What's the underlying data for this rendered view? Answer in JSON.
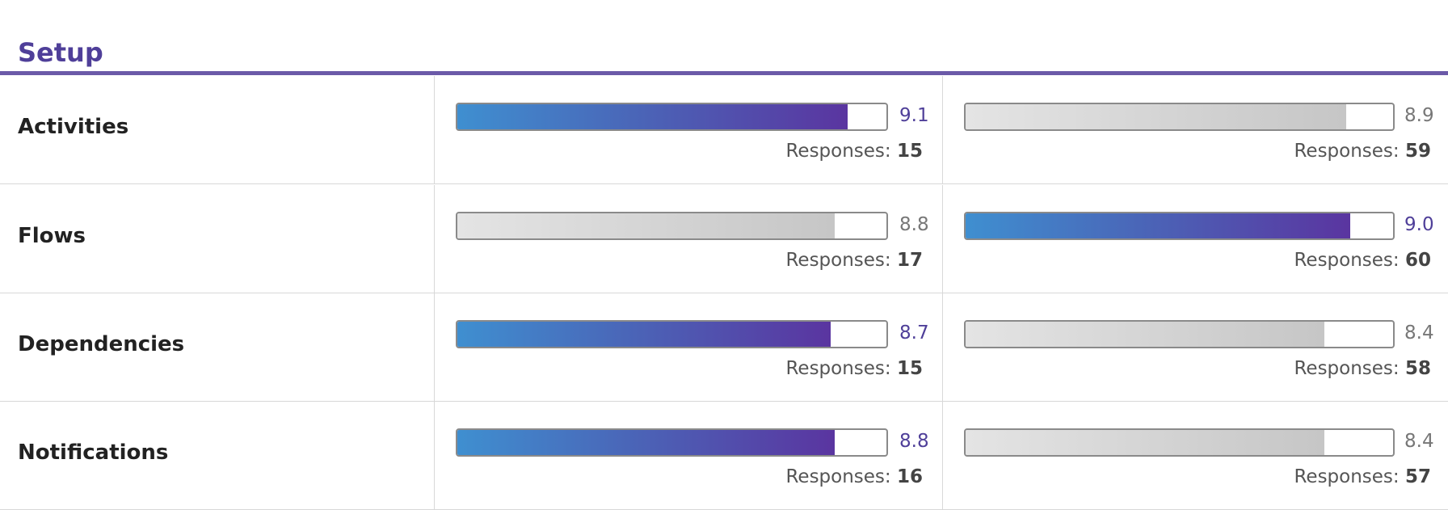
{
  "header": {
    "title": "Setup"
  },
  "responses_label": "Responses:",
  "xlim": [
    0,
    10
  ],
  "rows": [
    {
      "label": "Activities",
      "scores": [
        9.1,
        8.9
      ],
      "score_labels": [
        "9.1",
        "8.9"
      ],
      "responses": [
        15,
        59
      ]
    },
    {
      "label": "Flows",
      "scores": [
        8.8,
        9.0
      ],
      "score_labels": [
        "8.8",
        "9.0"
      ],
      "responses": [
        17,
        60
      ]
    },
    {
      "label": "Dependencies",
      "scores": [
        8.7,
        8.4
      ],
      "score_labels": [
        "8.7",
        "8.4"
      ],
      "responses": [
        15,
        58
      ]
    },
    {
      "label": "Notifications",
      "scores": [
        8.8,
        8.4
      ],
      "score_labels": [
        "8.8",
        "8.4"
      ],
      "responses": [
        16,
        57
      ]
    }
  ]
}
